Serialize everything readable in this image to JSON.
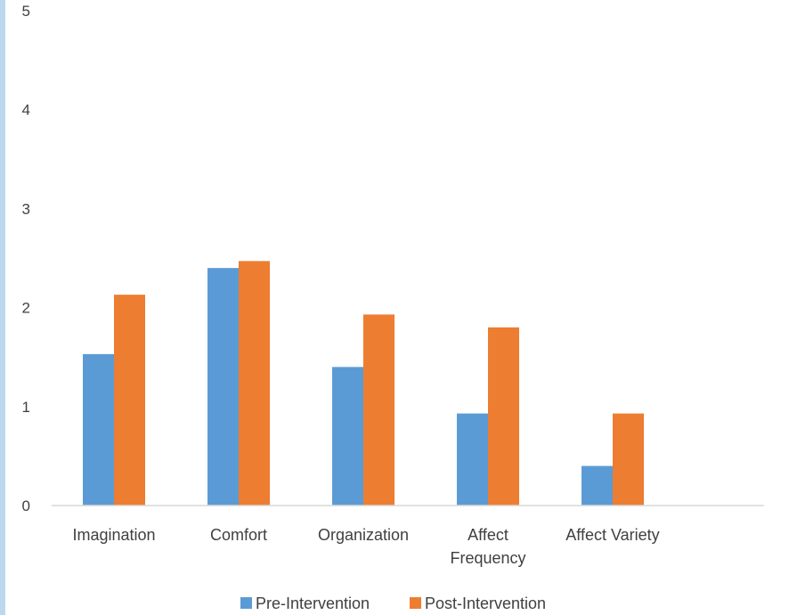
{
  "chart_data": {
    "type": "bar",
    "categories": [
      "Imagination",
      "Comfort",
      "Organization",
      "Affect Frequency",
      "Affect Variety"
    ],
    "category_label_lines": [
      [
        "Imagination"
      ],
      [
        "Comfort"
      ],
      [
        "Organization"
      ],
      [
        "Affect",
        "Frequency"
      ],
      [
        "Affect Variety"
      ]
    ],
    "series": [
      {
        "name": "Pre-Intervention",
        "color": "#5b9bd5",
        "values": [
          1.53,
          2.4,
          1.4,
          0.93,
          0.4
        ]
      },
      {
        "name": "Post-Intervention",
        "color": "#ed7d31",
        "values": [
          2.13,
          2.47,
          1.93,
          1.8,
          0.93
        ]
      }
    ],
    "ylim": [
      0,
      5
    ],
    "yticks": [
      "0",
      "1",
      "2",
      "3",
      "4",
      "5"
    ],
    "title": "",
    "xlabel": "",
    "ylabel": "",
    "grid": false,
    "legend_position": "bottom",
    "axis_color": "#d9d9d9",
    "text_color": "#404040",
    "accent_strip_color": "#bdd7ee"
  }
}
